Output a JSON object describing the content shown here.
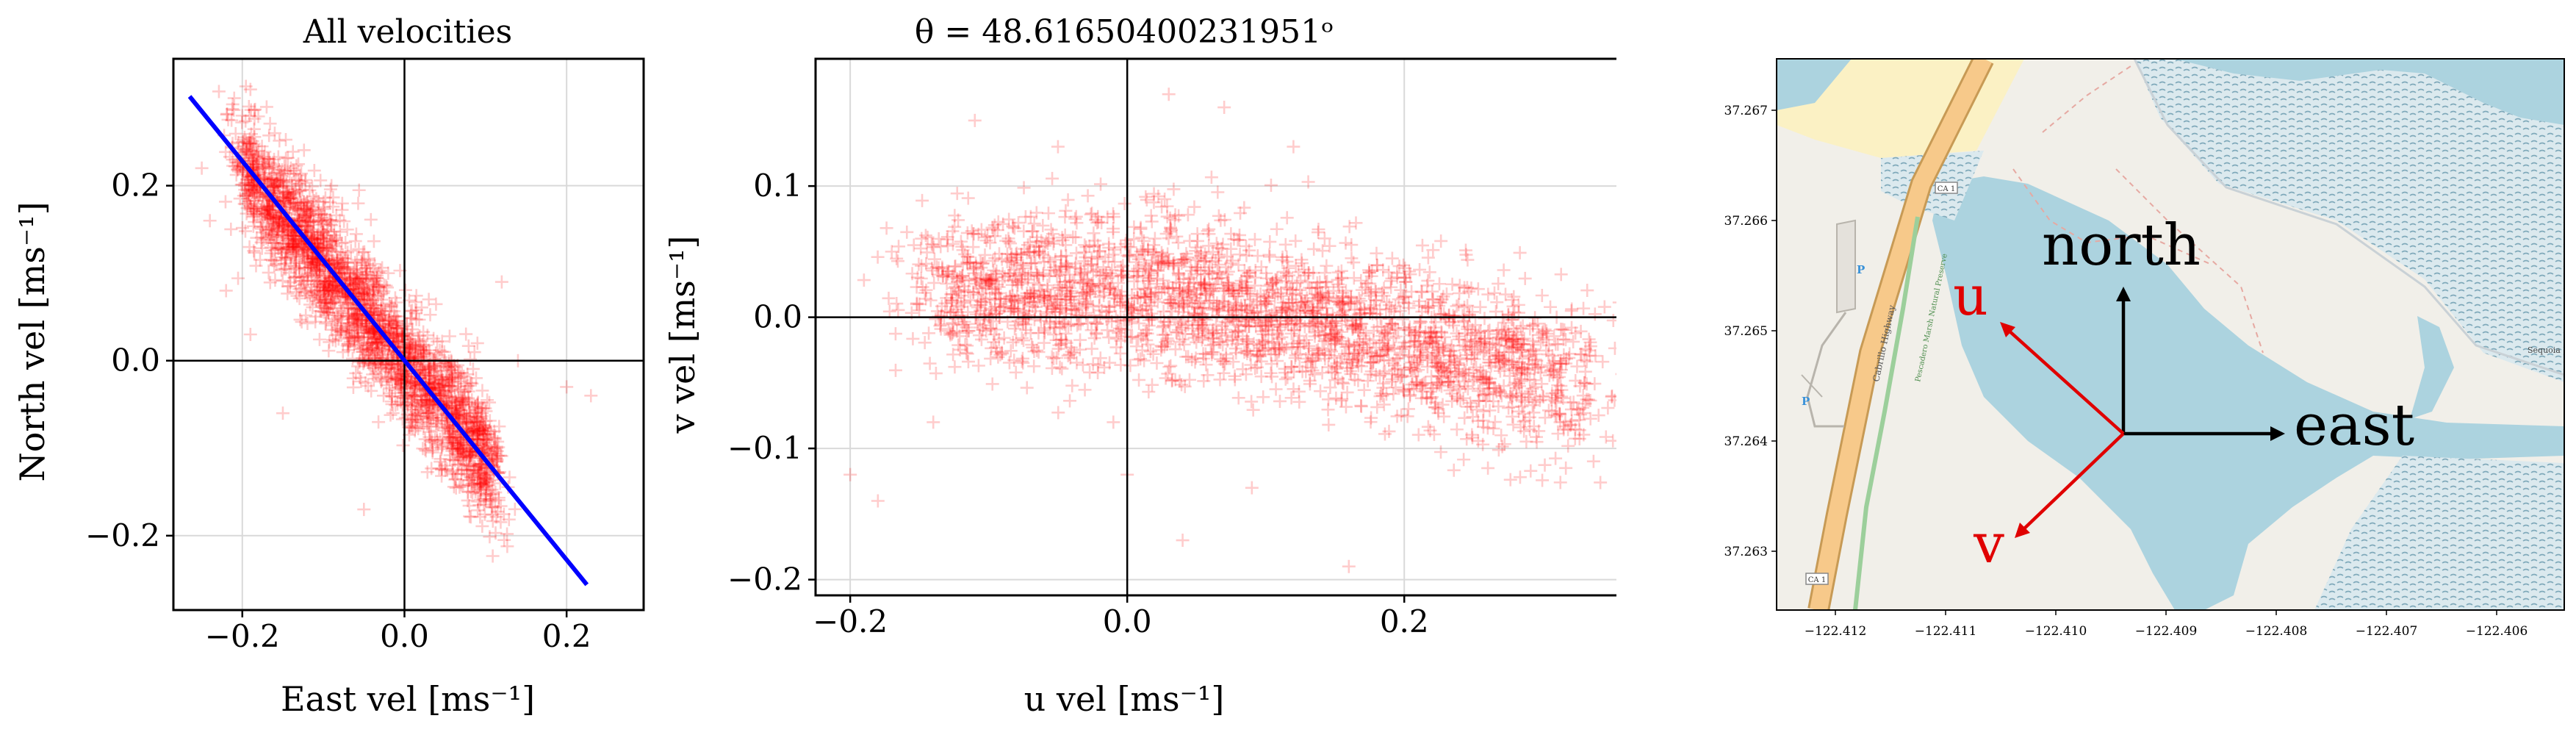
{
  "chart_data": [
    {
      "type": "scatter",
      "title": "All velocities",
      "xlabel": "East vel [ms⁻¹]",
      "ylabel": "North vel [ms⁻¹]",
      "xlim": [
        -0.285,
        0.295
      ],
      "ylim": [
        -0.285,
        0.345
      ],
      "xticks": [
        -0.2,
        0.0,
        0.2
      ],
      "xtick_labels": [
        "−0.2",
        "0.0",
        "0.2"
      ],
      "yticks": [
        -0.2,
        0.0,
        0.2
      ],
      "ytick_labels": [
        "−0.2",
        "0.0",
        "0.2"
      ],
      "grid": true,
      "marker": "+",
      "color": "#ff0000",
      "fit_line": {
        "x": [
          -0.265,
          0.225
        ],
        "y": [
          0.302,
          -0.256
        ],
        "color": "#0000ff"
      },
      "series": [
        {
          "values": [
            [
              -0.21,
              0.3
            ],
            [
              -0.19,
              0.31
            ],
            [
              -0.17,
              0.29
            ],
            [
              -0.2,
              0.28
            ],
            [
              -0.16,
              0.26
            ],
            [
              -0.18,
              0.24
            ],
            [
              -0.14,
              0.22
            ],
            [
              -0.15,
              0.2
            ],
            [
              -0.12,
              0.18
            ],
            [
              -0.13,
              0.16
            ],
            [
              -0.1,
              0.14
            ],
            [
              -0.11,
              0.12
            ],
            [
              -0.08,
              0.1
            ],
            [
              -0.09,
              0.08
            ],
            [
              -0.06,
              0.06
            ],
            [
              -0.07,
              0.04
            ],
            [
              -0.04,
              0.02
            ],
            [
              -0.03,
              0.0
            ],
            [
              -0.02,
              -0.02
            ],
            [
              0.0,
              -0.04
            ],
            [
              0.02,
              -0.06
            ],
            [
              0.04,
              -0.08
            ],
            [
              0.06,
              -0.1
            ],
            [
              0.05,
              -0.12
            ],
            [
              0.08,
              -0.09
            ],
            [
              -0.24,
              0.16
            ],
            [
              -0.25,
              0.22
            ],
            [
              -0.22,
              0.08
            ],
            [
              -0.19,
              0.03
            ],
            [
              0.12,
              0.09
            ],
            [
              0.14,
              0.0
            ],
            [
              0.2,
              -0.03
            ],
            [
              0.23,
              -0.04
            ],
            [
              0.1,
              -0.16
            ],
            [
              -0.05,
              -0.17
            ],
            [
              -0.15,
              -0.06
            ],
            [
              0.03,
              0.07
            ],
            [
              0.09,
              0.02
            ],
            [
              -0.09,
              0.2
            ],
            [
              -0.02,
              0.1
            ]
          ]
        }
      ]
    },
    {
      "type": "scatter",
      "title": "θ = 48.61650400231951ᵒ",
      "xlabel": "u vel [ms⁻¹]",
      "ylabel": "v vel [ms⁻¹]",
      "xlim": [
        -0.225,
        0.385
      ],
      "ylim": [
        -0.212,
        0.197
      ],
      "xticks": [
        -0.2,
        0.0,
        0.2
      ],
      "xtick_labels": [
        "−0.2",
        "0.0",
        "0.2"
      ],
      "yticks": [
        -0.2,
        -0.1,
        0.0,
        0.1
      ],
      "ytick_labels": [
        "−0.2",
        "−0.1",
        "0.0",
        "0.1"
      ],
      "grid": true,
      "marker": "+",
      "color": "#ff0000",
      "series": [
        {
          "values": [
            [
              -0.15,
              0.01
            ],
            [
              -0.12,
              0.03
            ],
            [
              -0.1,
              0.0
            ],
            [
              -0.08,
              0.04
            ],
            [
              -0.06,
              -0.01
            ],
            [
              -0.04,
              0.02
            ],
            [
              -0.02,
              0.05
            ],
            [
              0.0,
              0.03
            ],
            [
              0.02,
              0.06
            ],
            [
              0.04,
              0.01
            ],
            [
              0.06,
              0.02
            ],
            [
              0.08,
              -0.01
            ],
            [
              0.1,
              0.0
            ],
            [
              0.12,
              -0.02
            ],
            [
              0.15,
              -0.02
            ],
            [
              0.18,
              -0.03
            ],
            [
              0.2,
              -0.04
            ],
            [
              0.22,
              -0.03
            ],
            [
              0.25,
              -0.04
            ],
            [
              0.28,
              -0.05
            ],
            [
              0.3,
              -0.06
            ],
            [
              0.33,
              -0.05
            ],
            [
              0.35,
              -0.06
            ],
            [
              -0.2,
              -0.12
            ],
            [
              -0.18,
              -0.14
            ],
            [
              -0.14,
              -0.08
            ],
            [
              -0.11,
              0.15
            ],
            [
              -0.05,
              0.13
            ],
            [
              0.03,
              0.17
            ],
            [
              0.07,
              0.16
            ],
            [
              0.12,
              0.13
            ],
            [
              0.04,
              -0.17
            ],
            [
              0.16,
              -0.19
            ],
            [
              0.09,
              -0.13
            ],
            [
              0.2,
              0.03
            ],
            [
              -0.01,
              -0.08
            ],
            [
              0.0,
              -0.12
            ],
            [
              0.27,
              -0.09
            ],
            [
              0.31,
              0.0
            ],
            [
              -0.17,
              0.05
            ]
          ]
        }
      ]
    }
  ],
  "map": {
    "xtick_labels": [
      "−122.412",
      "−122.411",
      "−122.410",
      "−122.409",
      "−122.408",
      "−122.407",
      "−122.406"
    ],
    "ytick_labels": [
      "37.267",
      "37.266",
      "37.265",
      "37.264",
      "37.263"
    ],
    "arrows": {
      "north": "north",
      "east": "east",
      "u": "u",
      "v": "v"
    },
    "road_labels": {
      "highway": "Cabrillo Highway",
      "ca1_top": "CA 1",
      "ca1_bottom": "CA 1",
      "trail": "Pescadero Marsh Natural Preserve",
      "sequoia": "Sequoia"
    },
    "parking": "P",
    "colors": {
      "land": "#f1efe9",
      "water": "#acd3df",
      "road": "#f7c98a",
      "sand": "#fbf1c4",
      "marsh": "#8fb6c5"
    }
  }
}
